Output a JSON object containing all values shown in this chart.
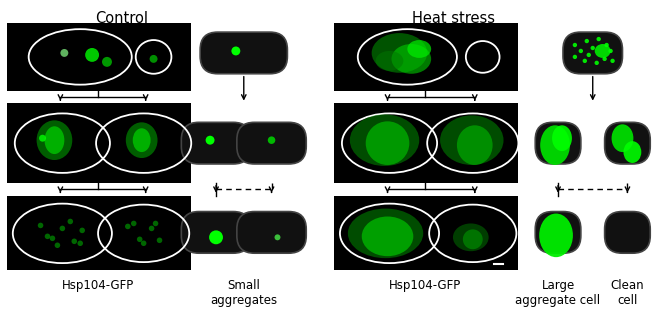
{
  "title_left": "Control",
  "title_right": "Heat stress",
  "label_hsp_left": "Hsp104-GFP",
  "label_small": "Small\naggregates",
  "label_hsp_right": "Hsp104-GFP",
  "label_large": "Large\naggregate cell",
  "label_clean": "Clean\ncell",
  "bg_color": "#ffffff",
  "black": "#000000",
  "cell_dark": "#111111",
  "cell_edge": "#444444",
  "white": "#ffffff",
  "green1": "#00ff00",
  "green2": "#00dd00",
  "green3": "#00aa00",
  "label_fontsize": 8.5,
  "title_fontsize": 10.5
}
